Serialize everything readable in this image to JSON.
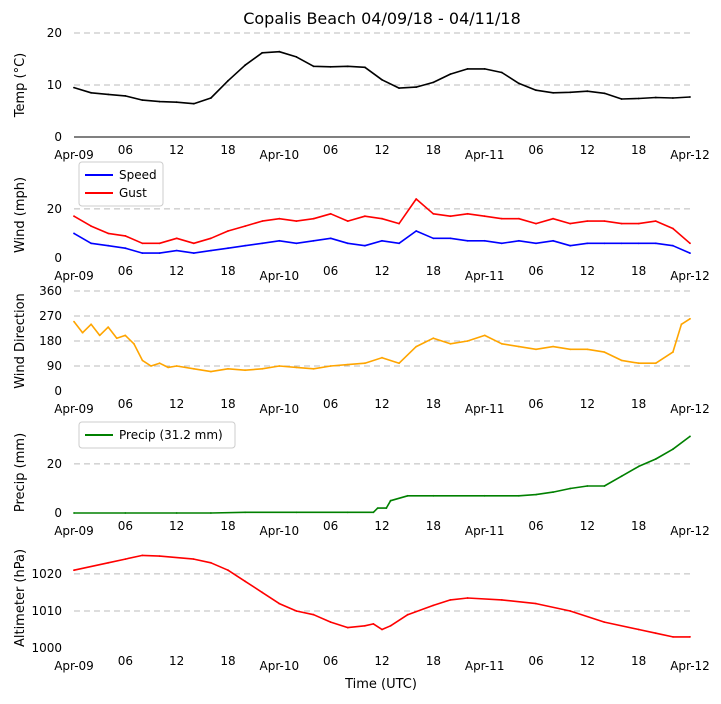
{
  "title": "Copalis Beach 04/09/18 - 04/11/18",
  "xlabel": "Time (UTC)",
  "x_tick_labels": [
    "Apr-09",
    "06",
    "12",
    "18",
    "Apr-10",
    "06",
    "12",
    "18",
    "Apr-11",
    "06",
    "12",
    "18",
    "Apr-12"
  ],
  "colors": {
    "temp": "#000000",
    "speed": "#0000ff",
    "gust": "#ff0000",
    "direction": "#ffa500",
    "precip": "#008000",
    "altimeter": "#ff0000",
    "grid": "#bbbbbb"
  },
  "chart_data": [
    {
      "type": "line",
      "ylabel": "Temp ($^\\circ$C)",
      "ylabel_display": "Temp (°C)",
      "ylim": [
        0,
        20
      ],
      "yticks": [
        0,
        10,
        20
      ],
      "x_unit": "hours since 2018-04-09 00:00 UTC",
      "series": [
        {
          "name": "",
          "x": [
            0,
            2,
            4,
            6,
            8,
            10,
            12,
            14,
            16,
            18,
            20,
            22,
            24,
            26,
            28,
            30,
            32,
            34,
            36,
            38,
            40,
            42,
            44,
            46,
            48,
            50,
            52,
            54,
            56,
            58,
            60,
            62,
            64,
            66,
            68,
            70,
            72
          ],
          "y": [
            9.5,
            8.5,
            8.2,
            7.9,
            7.1,
            6.8,
            6.7,
            6.4,
            7.5,
            10.8,
            13.8,
            16.2,
            16.4,
            15.4,
            13.6,
            13.5,
            13.6,
            13.4,
            11.0,
            9.4,
            9.6,
            10.5,
            12.1,
            13.1,
            13.1,
            12.4,
            10.3,
            9.0,
            8.5,
            8.6,
            8.8,
            8.4,
            7.3,
            7.4,
            7.6,
            7.5,
            7.7
          ]
        }
      ]
    },
    {
      "type": "line",
      "ylabel": "Wind (mph)",
      "ylim": [
        0,
        35
      ],
      "yticks": [
        0,
        20
      ],
      "legend": "top-left",
      "series": [
        {
          "name": "Speed",
          "x": [
            0,
            2,
            4,
            6,
            8,
            10,
            12,
            14,
            16,
            18,
            20,
            22,
            24,
            26,
            28,
            30,
            32,
            34,
            36,
            38,
            40,
            42,
            44,
            46,
            48,
            50,
            52,
            54,
            56,
            58,
            60,
            62,
            64,
            66,
            68,
            70,
            72
          ],
          "y": [
            10,
            6,
            5,
            4,
            2,
            2,
            3,
            2,
            3,
            4,
            5,
            6,
            7,
            6,
            7,
            8,
            6,
            5,
            7,
            6,
            11,
            8,
            8,
            7,
            7,
            6,
            7,
            6,
            7,
            5,
            6,
            6,
            6,
            6,
            6,
            5,
            2
          ]
        },
        {
          "name": "Gust",
          "x": [
            0,
            2,
            4,
            6,
            8,
            10,
            12,
            14,
            16,
            18,
            20,
            22,
            24,
            26,
            28,
            30,
            32,
            34,
            36,
            38,
            40,
            42,
            44,
            46,
            48,
            50,
            52,
            54,
            56,
            58,
            60,
            62,
            64,
            66,
            68,
            70,
            72
          ],
          "y": [
            17,
            13,
            10,
            9,
            6,
            6,
            8,
            6,
            8,
            11,
            13,
            15,
            16,
            15,
            16,
            18,
            15,
            17,
            16,
            14,
            24,
            18,
            17,
            18,
            17,
            16,
            16,
            14,
            16,
            14,
            15,
            15,
            14,
            14,
            15,
            12,
            6
          ]
        }
      ]
    },
    {
      "type": "line",
      "ylabel": "Wind Direction",
      "ylim": [
        0,
        360
      ],
      "yticks": [
        0,
        90,
        180,
        270,
        360
      ],
      "series": [
        {
          "name": "",
          "x": [
            0,
            1,
            2,
            3,
            4,
            5,
            6,
            7,
            8,
            9,
            10,
            11,
            12,
            14,
            16,
            18,
            20,
            22,
            24,
            26,
            28,
            30,
            32,
            34,
            36,
            38,
            40,
            42,
            44,
            46,
            48,
            50,
            52,
            54,
            56,
            58,
            60,
            62,
            64,
            66,
            68,
            70,
            71,
            72
          ],
          "y": [
            250,
            210,
            240,
            200,
            230,
            190,
            200,
            170,
            110,
            90,
            100,
            85,
            90,
            80,
            70,
            80,
            75,
            80,
            90,
            85,
            80,
            90,
            95,
            100,
            120,
            100,
            160,
            190,
            170,
            180,
            200,
            170,
            160,
            150,
            160,
            150,
            150,
            140,
            110,
            100,
            100,
            140,
            240,
            260
          ]
        }
      ]
    },
    {
      "type": "line",
      "ylabel": "Precip (mm)",
      "ylim": [
        0,
        33
      ],
      "yticks": [
        0,
        20
      ],
      "legend": "top-left",
      "series": [
        {
          "name": "Precip (31.2 mm)",
          "x": [
            0,
            6,
            12,
            16,
            20,
            26,
            32,
            35,
            35.5,
            36.5,
            37,
            39,
            42,
            48,
            52,
            54,
            56,
            58,
            60,
            62,
            64,
            66,
            68,
            70,
            72
          ],
          "y": [
            0,
            0,
            0,
            0,
            0.3,
            0.3,
            0.3,
            0.3,
            2,
            2,
            5,
            7,
            7,
            7,
            7,
            7.5,
            8.5,
            10,
            11,
            11,
            15,
            19,
            22,
            26,
            31.2
          ]
        }
      ]
    },
    {
      "type": "line",
      "ylabel": "Altimeter (hPa)",
      "ylim": [
        1000,
        1027
      ],
      "yticks": [
        1000,
        1010,
        1020
      ],
      "xlabel": "Time (UTC)",
      "series": [
        {
          "name": "",
          "x": [
            0,
            4,
            6,
            8,
            10,
            14,
            16,
            18,
            20,
            22,
            24,
            26,
            28,
            30,
            32,
            34,
            35,
            36,
            37,
            39,
            42,
            44,
            46,
            50,
            54,
            58,
            62,
            66,
            68,
            70,
            72
          ],
          "y": [
            1021,
            1023,
            1024,
            1025,
            1024.8,
            1024,
            1023,
            1021,
            1018,
            1015,
            1012,
            1010,
            1009,
            1007,
            1005.5,
            1006,
            1006.5,
            1005,
            1006,
            1009,
            1011.5,
            1013,
            1013.5,
            1013,
            1012,
            1010,
            1007,
            1005,
            1004,
            1003,
            1003
          ]
        }
      ]
    }
  ]
}
